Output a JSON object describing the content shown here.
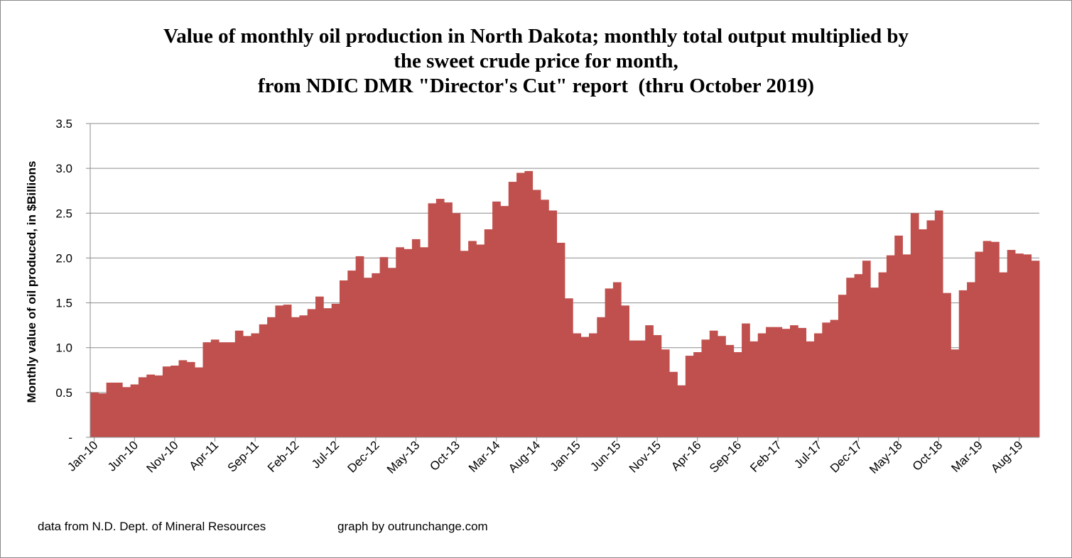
{
  "chart_data": {
    "type": "bar",
    "title_lines": [
      "Value of monthly oil production in North Dakota; monthly total output multiplied by",
      "the sweet crude price for month,",
      "from NDIC DMR \"Director's Cut\" report  (thru October 2019)"
    ],
    "ylabel": "Monthly value of oil produced, in $Billions",
    "xlabel": "",
    "ylim": [
      0,
      3.5
    ],
    "yticks": [
      "-",
      "0.5",
      "1.0",
      "1.5",
      "2.0",
      "2.5",
      "3.0",
      "3.5"
    ],
    "ytick_values": [
      0,
      0.5,
      1.0,
      1.5,
      2.0,
      2.5,
      3.0,
      3.5
    ],
    "grid": true,
    "bar_color": "#c0504d",
    "tick_labels": [
      "Jan-10",
      "Jun-10",
      "Nov-10",
      "Apr-11",
      "Sep-11",
      "Feb-12",
      "Jul-12",
      "Dec-12",
      "May-13",
      "Oct-13",
      "Mar-14",
      "Aug-14",
      "Jan-15",
      "Jun-15",
      "Nov-15",
      "Apr-16",
      "Sep-16",
      "Feb-17",
      "Jul-17",
      "Dec-17",
      "May-18",
      "Oct-18",
      "Mar-19",
      "Aug-19"
    ],
    "tick_label_every": 5,
    "start_month": "Jan-10",
    "end_month": "Oct-19",
    "values": [
      0.5,
      0.49,
      0.61,
      0.61,
      0.56,
      0.59,
      0.67,
      0.7,
      0.69,
      0.79,
      0.8,
      0.86,
      0.84,
      0.78,
      1.06,
      1.09,
      1.06,
      1.06,
      1.19,
      1.13,
      1.16,
      1.26,
      1.34,
      1.47,
      1.48,
      1.34,
      1.36,
      1.43,
      1.57,
      1.44,
      1.49,
      1.75,
      1.86,
      2.02,
      1.78,
      1.83,
      2.01,
      1.89,
      2.12,
      2.1,
      2.21,
      2.12,
      2.61,
      2.66,
      2.62,
      2.5,
      2.08,
      2.19,
      2.15,
      2.32,
      2.63,
      2.58,
      2.85,
      2.95,
      2.97,
      2.76,
      2.65,
      2.53,
      2.17,
      1.55,
      1.16,
      1.12,
      1.16,
      1.34,
      1.66,
      1.73,
      1.47,
      1.08,
      1.08,
      1.25,
      1.14,
      0.98,
      0.73,
      0.58,
      0.91,
      0.95,
      1.09,
      1.19,
      1.13,
      1.03,
      0.95,
      1.27,
      1.07,
      1.16,
      1.23,
      1.23,
      1.21,
      1.25,
      1.22,
      1.07,
      1.16,
      1.28,
      1.31,
      1.59,
      1.78,
      1.82,
      1.97,
      1.67,
      1.84,
      2.03,
      2.25,
      2.04,
      2.5,
      2.32,
      2.42,
      2.53,
      1.61,
      0.98,
      1.64,
      1.73,
      2.07,
      2.19,
      2.18,
      1.84,
      2.09,
      2.05,
      2.04,
      1.97
    ]
  },
  "footer": {
    "left": "data from N.D. Dept. of Mineral Resources",
    "right": "graph by outrunchange.com"
  }
}
